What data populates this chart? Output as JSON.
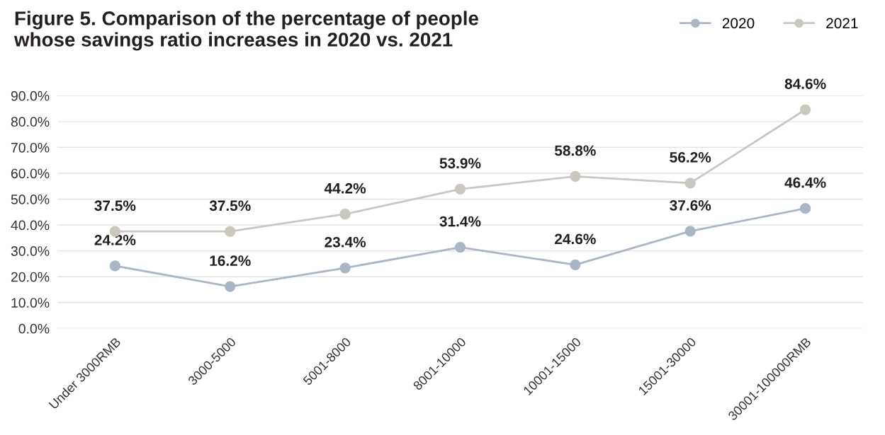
{
  "chart_data": {
    "type": "line",
    "title": "Figure 5. Comparison of the percentage of people\nwhose savings ratio increases in 2020 vs. 2021",
    "categories": [
      "Under 3000RMB",
      "3000-5000",
      "5001-8000",
      "8001-10000",
      "10001-15000",
      "15001-30000",
      "30001-100000RMB"
    ],
    "series": [
      {
        "name": "2020",
        "color": "#aab6c6",
        "values": [
          24.2,
          16.2,
          23.4,
          31.4,
          24.6,
          37.6,
          46.4
        ],
        "value_labels": [
          "24.2%",
          "16.2%",
          "23.4%",
          "31.4%",
          "24.6%",
          "37.6%",
          "46.4%"
        ]
      },
      {
        "name": "2021",
        "color": "#c9c7be",
        "values": [
          37.5,
          37.5,
          44.2,
          53.9,
          58.8,
          56.2,
          84.6
        ],
        "value_labels": [
          "37.5%",
          "37.5%",
          "44.2%",
          "53.9%",
          "58.8%",
          "56.2%",
          "84.6%"
        ]
      }
    ],
    "ylim": [
      0,
      90
    ],
    "yticks": [
      {
        "value": 0,
        "label": "0.0%"
      },
      {
        "value": 10,
        "label": "10.0%"
      },
      {
        "value": 20,
        "label": "20.0%"
      },
      {
        "value": 30,
        "label": "30.0%"
      },
      {
        "value": 40,
        "label": "40.0%"
      },
      {
        "value": 50,
        "label": "50.0%"
      },
      {
        "value": 60,
        "label": "60.0%"
      },
      {
        "value": 70,
        "label": "70.0%"
      },
      {
        "value": 80,
        "label": "80.0%"
      },
      {
        "value": 90,
        "label": "90.0%"
      }
    ],
    "grid": "y",
    "legend": "top right",
    "marker": "circle",
    "line_style": "solid"
  }
}
